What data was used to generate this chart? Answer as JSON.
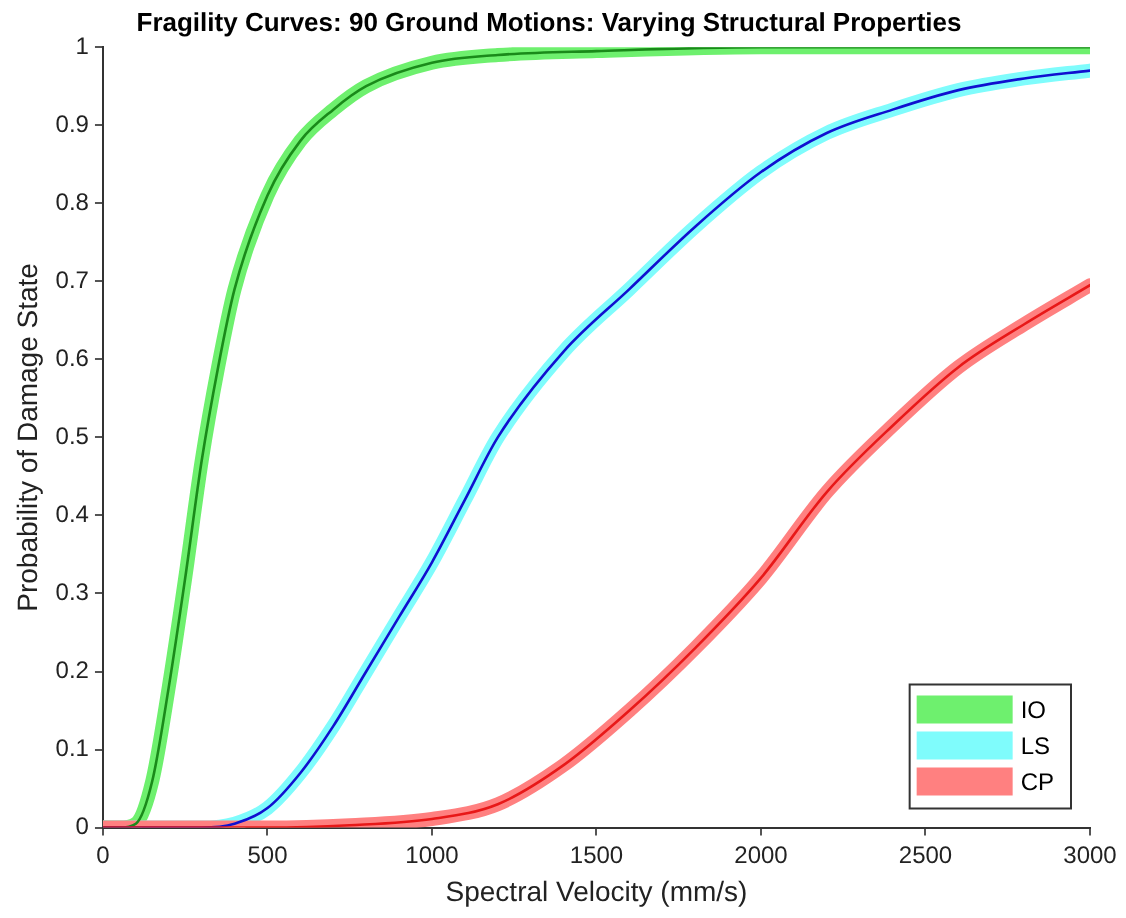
{
  "chart_data": {
    "type": "line",
    "title": "Fragility Curves: 90 Ground Motions: Varying Structural Properties",
    "xlabel": "Spectral Velocity (mm/s)",
    "ylabel": "Probability of Damage State",
    "xlim": [
      0,
      3000
    ],
    "xticks": [
      0,
      500,
      1000,
      1500,
      2000,
      2500,
      3000
    ],
    "ylim": [
      0,
      1
    ],
    "yticks": [
      0,
      0.1,
      0.2,
      0.3,
      0.4,
      0.5,
      0.6,
      0.7,
      0.8,
      0.9,
      1
    ],
    "grid": false,
    "legend": "bottom right",
    "marker": "none",
    "line_style": "solid",
    "series": [
      {
        "name": "IO",
        "color": "#6ef06e",
        "x": [
          0,
          50,
          100,
          150,
          200,
          250,
          300,
          350,
          400,
          500,
          600,
          700,
          800,
          1000,
          1200,
          1500,
          2000,
          3000
        ],
        "values": [
          0,
          0,
          0.005,
          0.06,
          0.18,
          0.32,
          0.47,
          0.59,
          0.69,
          0.81,
          0.88,
          0.92,
          0.95,
          0.98,
          0.99,
          0.995,
          1,
          1
        ]
      },
      {
        "name": "LS",
        "color": "#7ffcfc",
        "x": [
          0,
          300,
          400,
          500,
          600,
          700,
          800,
          900,
          1000,
          1100,
          1200,
          1400,
          1600,
          1800,
          2000,
          2200,
          2400,
          2600,
          2800,
          3000
        ],
        "values": [
          0,
          0,
          0.005,
          0.025,
          0.07,
          0.13,
          0.2,
          0.27,
          0.34,
          0.42,
          0.5,
          0.61,
          0.69,
          0.77,
          0.84,
          0.89,
          0.92,
          0.945,
          0.96,
          0.97
        ]
      },
      {
        "name": "CP",
        "color": "#ff8080",
        "x": [
          0,
          500,
          750,
          1000,
          1200,
          1400,
          1600,
          1800,
          2000,
          2200,
          2400,
          2600,
          2800,
          3000
        ],
        "values": [
          0,
          0,
          0.003,
          0.011,
          0.03,
          0.08,
          0.15,
          0.23,
          0.32,
          0.43,
          0.515,
          0.59,
          0.645,
          0.695
        ]
      },
      {
        "color": "#1a8a1a",
        "x": [
          0,
          50,
          100,
          150,
          200,
          250,
          300,
          350,
          400,
          500,
          600,
          700,
          800,
          1000,
          1200,
          1500,
          2000,
          3000
        ],
        "values": [
          0,
          0,
          0.005,
          0.06,
          0.18,
          0.32,
          0.47,
          0.59,
          0.69,
          0.81,
          0.88,
          0.92,
          0.95,
          0.98,
          0.99,
          0.995,
          1,
          1
        ]
      },
      {
        "color": "#1010d0",
        "x": [
          0,
          300,
          400,
          500,
          600,
          700,
          800,
          900,
          1000,
          1100,
          1200,
          1400,
          1600,
          1800,
          2000,
          2200,
          2400,
          2600,
          2800,
          3000
        ],
        "values": [
          0,
          0,
          0.005,
          0.025,
          0.07,
          0.13,
          0.2,
          0.27,
          0.34,
          0.42,
          0.5,
          0.61,
          0.69,
          0.77,
          0.84,
          0.89,
          0.92,
          0.945,
          0.96,
          0.97
        ]
      },
      {
        "color": "#e81818",
        "x": [
          0,
          500,
          750,
          1000,
          1200,
          1400,
          1600,
          1800,
          2000,
          2200,
          2400,
          2600,
          2800,
          3000
        ],
        "values": [
          0,
          0,
          0.003,
          0.011,
          0.03,
          0.08,
          0.15,
          0.23,
          0.32,
          0.43,
          0.515,
          0.59,
          0.645,
          0.695
        ]
      }
    ]
  }
}
